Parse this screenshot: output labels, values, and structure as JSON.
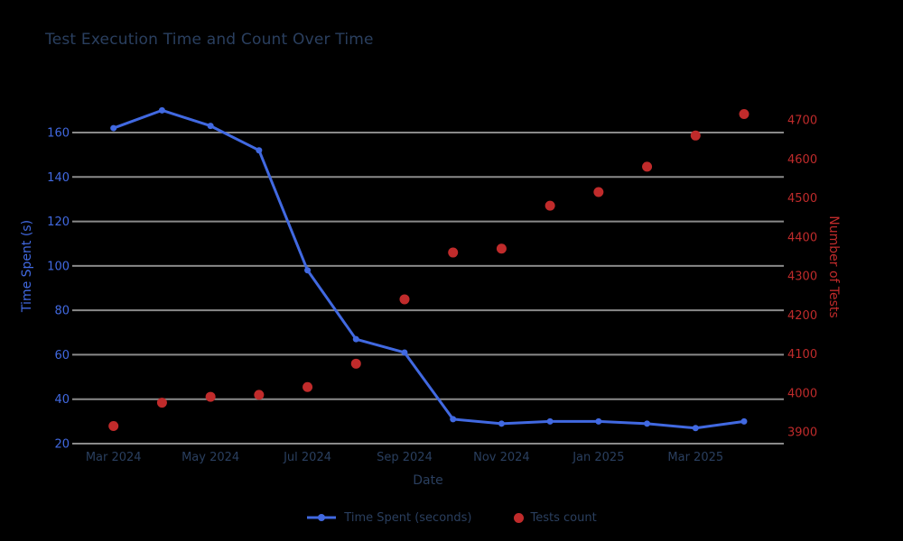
{
  "page": {
    "background": "#000000",
    "text_color": "#2a3f5f"
  },
  "chart_data": {
    "type": "line",
    "title": "Test Execution Time and Count Over Time",
    "xlabel": "Date",
    "categories": [
      "Mar 2024",
      "Apr 2024",
      "May 2024",
      "Jun 2024",
      "Jul 2024",
      "Aug 2024",
      "Sep 2024",
      "Oct 2024",
      "Nov 2024",
      "Dec 2024",
      "Jan 2025",
      "Feb 2025",
      "Mar 2025",
      "Apr 2025"
    ],
    "x_ticks": [
      {
        "label": "Mar 2024",
        "month_index": 0
      },
      {
        "label": "May 2024",
        "month_index": 2
      },
      {
        "label": "Jul 2024",
        "month_index": 4
      },
      {
        "label": "Sep 2024",
        "month_index": 6
      },
      {
        "label": "Nov 2024",
        "month_index": 8
      },
      {
        "label": "Jan 2025",
        "month_index": 10
      },
      {
        "label": "Mar 2025",
        "month_index": 12
      }
    ],
    "series": [
      {
        "name": "Time Spent (seconds)",
        "type": "line_markers",
        "axis": "left",
        "color": "#4169e1",
        "values": [
          162,
          170,
          163,
          152,
          98,
          67,
          61,
          31,
          29,
          30,
          30,
          29,
          27,
          30
        ]
      },
      {
        "name": "Tests count",
        "type": "scatter",
        "axis": "right",
        "color": "#c02b2b",
        "values": [
          3915,
          3975,
          3990,
          3995,
          4015,
          4075,
          4240,
          4360,
          4370,
          4480,
          4515,
          4580,
          4660,
          4715
        ]
      }
    ],
    "left_axis": {
      "title": "Time Spent (s)",
      "color": "#4169e1",
      "ticks": [
        20,
        40,
        60,
        80,
        100,
        120,
        140,
        160
      ],
      "range": [
        20,
        160
      ]
    },
    "right_axis": {
      "title": "Number of Tests",
      "color": "#c02b2b",
      "ticks": [
        3900,
        4000,
        4100,
        4200,
        4300,
        4400,
        4500,
        4600,
        4700
      ],
      "range": [
        3900,
        4700
      ]
    },
    "grid": true,
    "gridline_color": "#8a8a8a",
    "tick_text_color": "#2a3f5f",
    "legend_position": "bottom-center"
  }
}
